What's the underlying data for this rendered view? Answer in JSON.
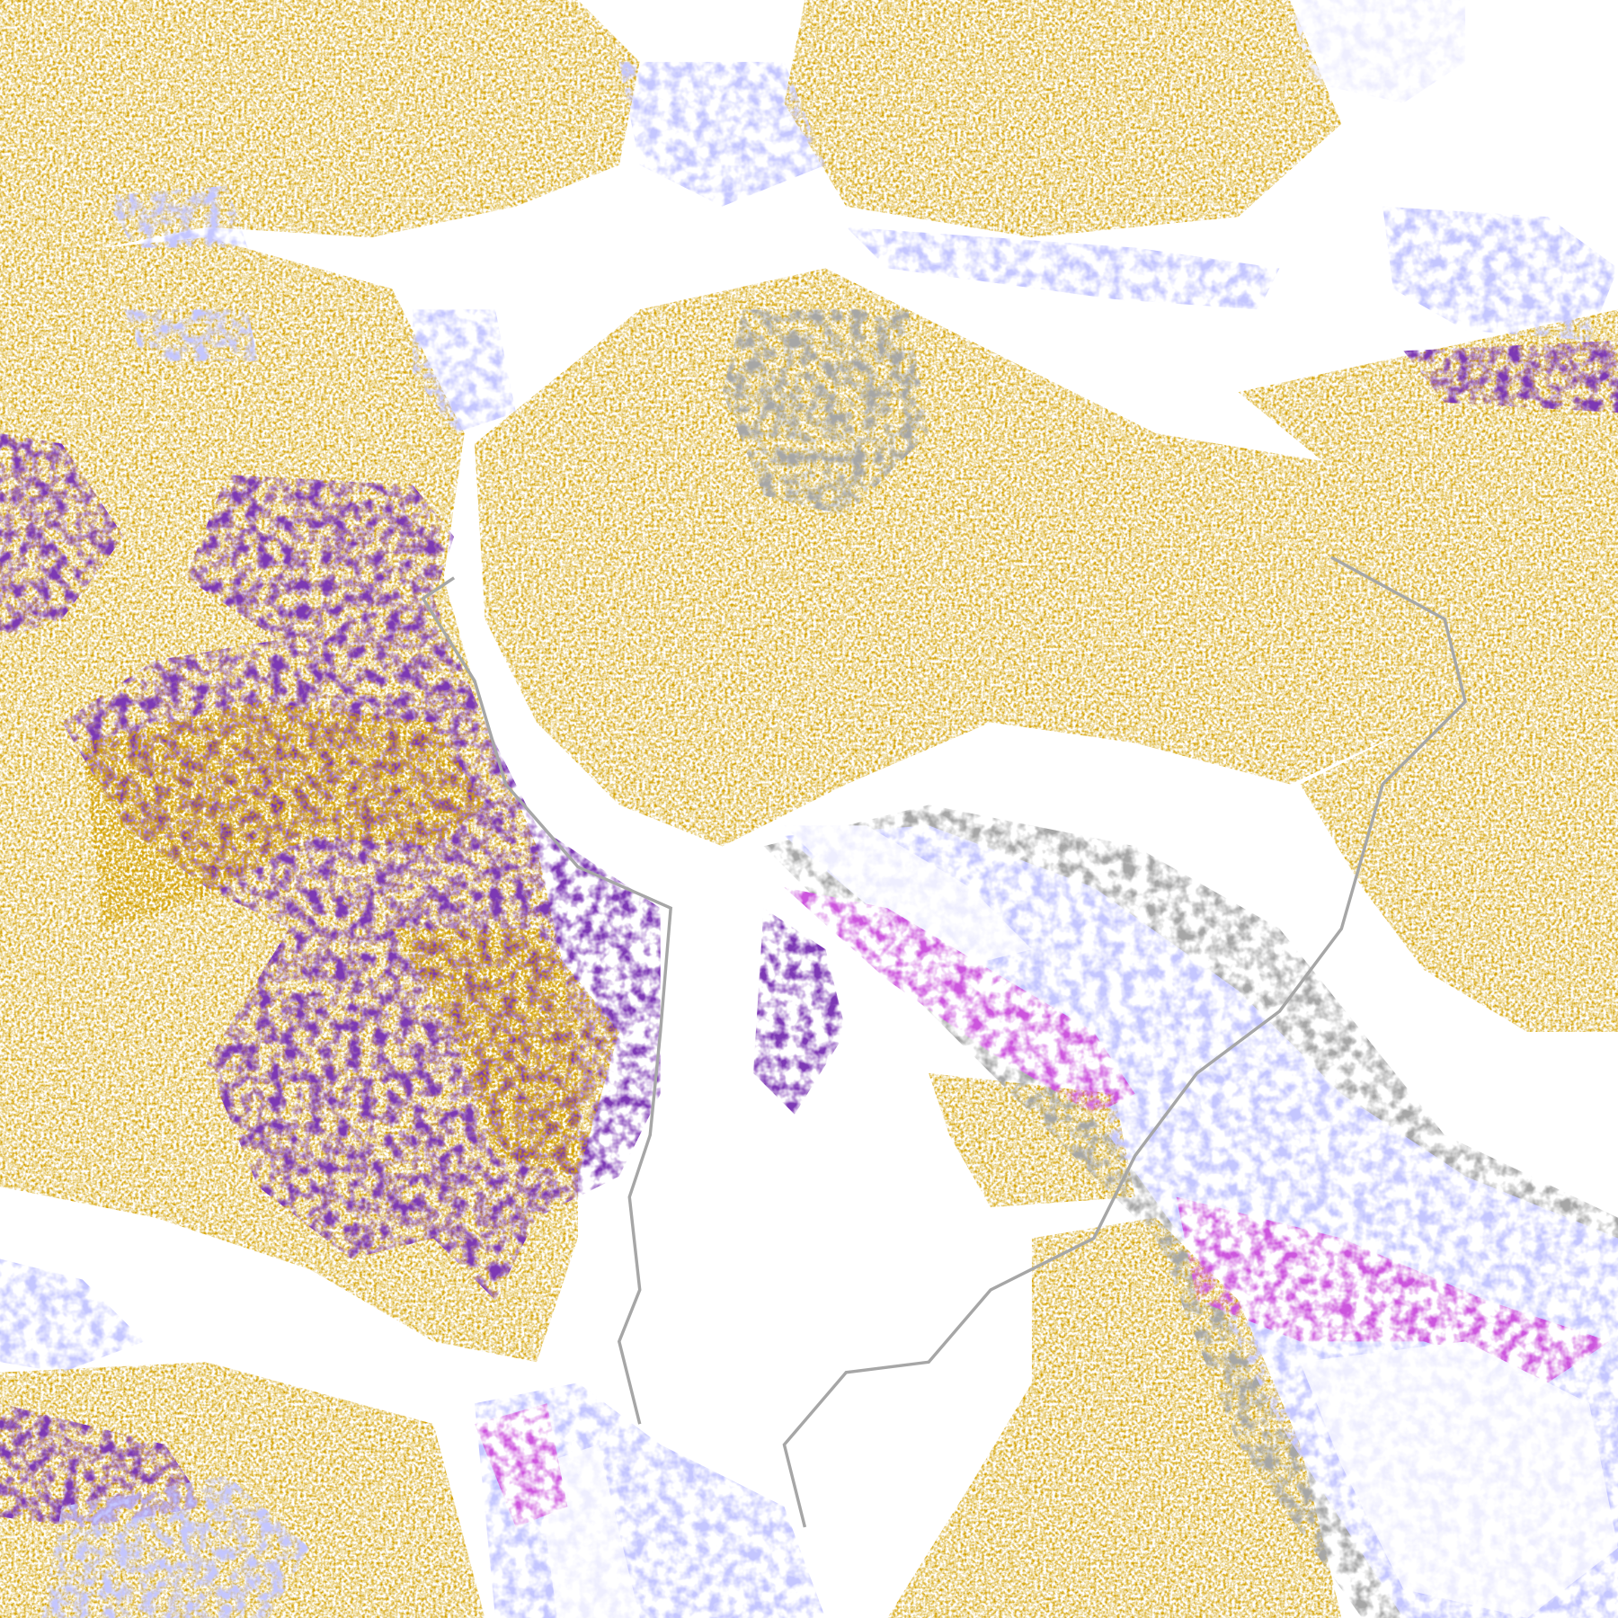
{
  "image": {
    "kind": "false-color satellite cloud/surface classification",
    "colors": {
      "background": "#ffffff",
      "gold": "#d4a100",
      "gold_dark": "#a8840a",
      "purple": "#7c38b4",
      "magenta": "#cc55dd",
      "lavender": "#c4c6ff",
      "periwinkle": "#9c9cf0",
      "pale": "#eeeeff",
      "gray": "#a6a6a6"
    }
  }
}
